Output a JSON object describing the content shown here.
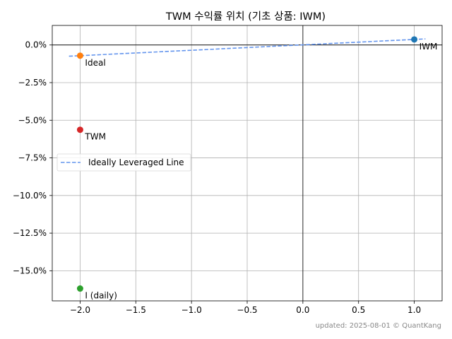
{
  "chart_data": {
    "type": "scatter",
    "title": "TWM 수익률 위치 (기초 상품: IWM)",
    "xlabel": "",
    "ylabel": "",
    "xlim": [
      -2.25,
      1.25
    ],
    "ylim": [
      -17.0,
      1.3
    ],
    "x_ticks": [
      -2.0,
      -1.5,
      -1.0,
      -0.5,
      0.0,
      0.5,
      1.0
    ],
    "x_tick_labels": [
      "−2.0",
      "−1.5",
      "−1.0",
      "−0.5",
      "0.0",
      "0.5",
      "1.0"
    ],
    "y_ticks": [
      0.0,
      -2.5,
      -5.0,
      -7.5,
      -10.0,
      -12.5,
      -15.0
    ],
    "y_tick_labels": [
      "0.0%",
      "−2.5%",
      "−5.0%",
      "−7.5%",
      "−10.0%",
      "−12.5%",
      "−15.0%"
    ],
    "grid": true,
    "points": [
      {
        "label": "IWM",
        "x": 1.0,
        "y": 0.37,
        "color": "#1f77b4"
      },
      {
        "label": "Ideal",
        "x": -2.0,
        "y": -0.71,
        "color": "#ff7f0e"
      },
      {
        "label": "TWM",
        "x": -2.0,
        "y": -5.63,
        "color": "#d62728"
      },
      {
        "label": "I (daily)",
        "x": -2.0,
        "y": -16.18,
        "color": "#2ca02c"
      }
    ],
    "series": [
      {
        "name": "Ideally Leveraged Line",
        "x": [
          -2.1,
          1.1
        ],
        "y": [
          -0.745,
          0.405
        ],
        "color": "#6495ed",
        "style": "dashed"
      }
    ],
    "legend": {
      "placement": "center-left",
      "entries": [
        "Ideally Leveraged Line"
      ]
    },
    "footer": "updated: 2025-08-01 © QuantKang"
  }
}
